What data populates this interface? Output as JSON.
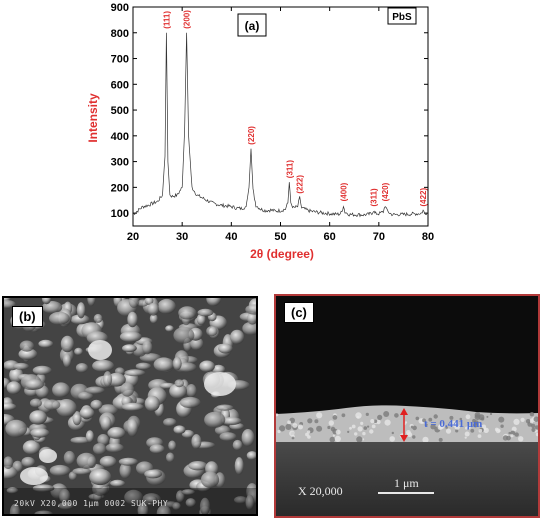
{
  "panel_a": {
    "label": "(a)",
    "sample_label": "PbS"
  },
  "panel_b": {
    "label": "(b)",
    "sem_footer": "20kV  X20,000  1μm  0002  SUK-PHY"
  },
  "panel_c": {
    "label": "(c)",
    "magnification": "X 20,000",
    "scale_label": "1 μm",
    "thickness_label": "t = 0.441 μm",
    "colors": {
      "arrow": "#e02020",
      "thickness_text": "#4a6bd6"
    }
  },
  "chart_data": {
    "type": "line",
    "xlabel": "2θ (degree)",
    "ylabel": "Intensity",
    "xlim": [
      20,
      80
    ],
    "ylim": [
      50,
      900
    ],
    "xticks": [
      20,
      30,
      40,
      50,
      60,
      70,
      80
    ],
    "yticks": [
      100,
      200,
      300,
      400,
      500,
      600,
      700,
      800,
      900
    ],
    "axis_label_color": "#e03030",
    "peak_label_color": "#e03030",
    "peaks": [
      {
        "x": 26.8,
        "y": 800,
        "label": "(111)"
      },
      {
        "x": 30.9,
        "y": 800,
        "label": "(200)"
      },
      {
        "x": 44.0,
        "y": 350,
        "label": "(220)"
      },
      {
        "x": 51.8,
        "y": 220,
        "label": "(311)"
      },
      {
        "x": 53.9,
        "y": 160,
        "label": "(222)"
      },
      {
        "x": 62.8,
        "y": 130,
        "label": "(400)"
      },
      {
        "x": 68.9,
        "y": 110,
        "label": "(311)"
      },
      {
        "x": 71.3,
        "y": 130,
        "label": "(420)"
      },
      {
        "x": 79.0,
        "y": 110,
        "label": "(422)"
      }
    ],
    "series": [
      {
        "x": [
          20,
          21,
          22,
          23,
          24,
          25,
          26,
          26.5,
          26.8,
          27.1,
          27.5,
          28,
          29,
          30,
          30.5,
          30.9,
          31.3,
          32,
          33,
          34,
          35,
          36,
          37,
          38,
          39,
          40,
          41,
          42,
          43,
          43.6,
          44,
          44.4,
          45,
          46,
          47,
          48,
          49,
          50,
          51,
          51.5,
          51.8,
          52.1,
          52.6,
          53.5,
          53.9,
          54.3,
          55,
          56,
          57,
          58,
          59,
          60,
          61,
          62,
          62.5,
          62.8,
          63.1,
          64,
          65,
          66,
          67,
          68,
          68.6,
          68.9,
          69.2,
          70,
          70.9,
          71.3,
          71.7,
          72.5,
          73,
          74,
          75,
          76,
          77,
          78,
          78.7,
          79,
          79.3,
          80
        ],
        "values": [
          95,
          110,
          125,
          130,
          138,
          145,
          170,
          320,
          800,
          300,
          170,
          165,
          170,
          200,
          420,
          800,
          400,
          200,
          170,
          160,
          150,
          140,
          135,
          130,
          128,
          125,
          120,
          118,
          125,
          200,
          350,
          190,
          130,
          115,
          110,
          112,
          108,
          110,
          115,
          140,
          220,
          140,
          120,
          125,
          160,
          120,
          115,
          108,
          105,
          102,
          100,
          98,
          96,
          96,
          105,
          130,
          104,
          95,
          94,
          94,
          93,
          96,
          100,
          110,
          99,
          98,
          105,
          130,
          108,
          96,
          94,
          95,
          95,
          96,
          97,
          98,
          100,
          110,
          100,
          102
        ]
      }
    ]
  }
}
